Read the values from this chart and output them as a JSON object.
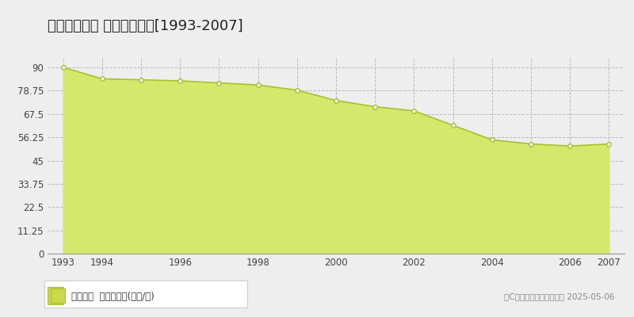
{
  "title": "門真市下島頭 公示地価推移[1993-2007]",
  "years": [
    1993,
    1994,
    1995,
    1996,
    1997,
    1998,
    1999,
    2000,
    2001,
    2002,
    2003,
    2004,
    2005,
    2006,
    2007
  ],
  "values": [
    90.0,
    84.5,
    84.0,
    83.5,
    82.5,
    81.5,
    79.0,
    74.0,
    71.0,
    69.0,
    62.0,
    55.0,
    53.0,
    52.0,
    53.0
  ],
  "yticks": [
    0,
    11.25,
    22.5,
    33.75,
    45,
    56.25,
    67.5,
    78.75,
    90
  ],
  "ylim": [
    0,
    95
  ],
  "xlim": [
    1992.6,
    2007.4
  ],
  "fill_color": "#d4e96b",
  "line_color": "#aabf30",
  "marker_facecolor": "#f5f5f5",
  "marker_edgecolor": "#aabf30",
  "grid_h_color": "#bbbbbb",
  "grid_v_color": "#bbbbbb",
  "bg_color": "#eeeeee",
  "plot_bg_color": "#eeeeee",
  "legend_label": "公示地価  平均坪単価(万円/坪)",
  "legend_square_color": "#c8d94a",
  "copyright_text": "（C）土地価格ドットコム 2025-05-06",
  "title_fontsize": 13,
  "tick_fontsize": 8.5,
  "legend_fontsize": 8.5,
  "copyright_fontsize": 7.5,
  "xtick_show": [
    1993,
    1994,
    1996,
    1998,
    2000,
    2002,
    2004,
    2006,
    2007
  ],
  "xticks_all": [
    1993,
    1994,
    1995,
    1996,
    1997,
    1998,
    1999,
    2000,
    2001,
    2002,
    2003,
    2004,
    2005,
    2006,
    2007
  ]
}
